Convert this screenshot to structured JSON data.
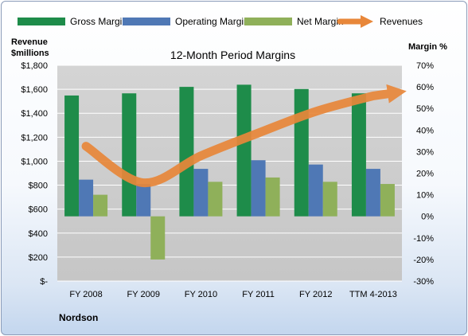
{
  "chart_data": {
    "type": "bar",
    "title": "12-Month Period Margins",
    "company": "Nordson",
    "left_axis_label": [
      "Revenue",
      "$millions"
    ],
    "right_axis_label": "Margin %",
    "categories": [
      "FY 2008",
      "FY 2009",
      "FY 2010",
      "FY 2011",
      "FY 2012",
      "TTM 4-2013"
    ],
    "left_ticks": [
      "$-",
      "$200",
      "$400",
      "$600",
      "$800",
      "$1,000",
      "$1,200",
      "$1,400",
      "$1,600",
      "$1,800"
    ],
    "right_ticks": [
      "-30%",
      "-20%",
      "-10%",
      "0%",
      "10%",
      "20%",
      "30%",
      "40%",
      "50%",
      "60%",
      "70%"
    ],
    "ylim_left": [
      0,
      1800
    ],
    "ylim_right": [
      -30,
      70
    ],
    "grid": true,
    "legend_position": "top",
    "series": [
      {
        "name": "Gross Margin",
        "axis": "right",
        "kind": "bar",
        "color": "#1e8c4a",
        "values": [
          56,
          57,
          60,
          61,
          59,
          57
        ]
      },
      {
        "name": "Operating Margin",
        "axis": "right",
        "kind": "bar",
        "color": "#4f78b5",
        "values": [
          17,
          15,
          22,
          26,
          24,
          22
        ]
      },
      {
        "name": "Net Margin",
        "axis": "right",
        "kind": "bar",
        "color": "#8fb05a",
        "values": [
          10,
          -20,
          16,
          18,
          16,
          15
        ]
      },
      {
        "name": "Revenues",
        "axis": "left",
        "kind": "line",
        "color": "#e8873a",
        "values": [
          1125,
          820,
          1045,
          1235,
          1415,
          1545
        ]
      }
    ]
  }
}
